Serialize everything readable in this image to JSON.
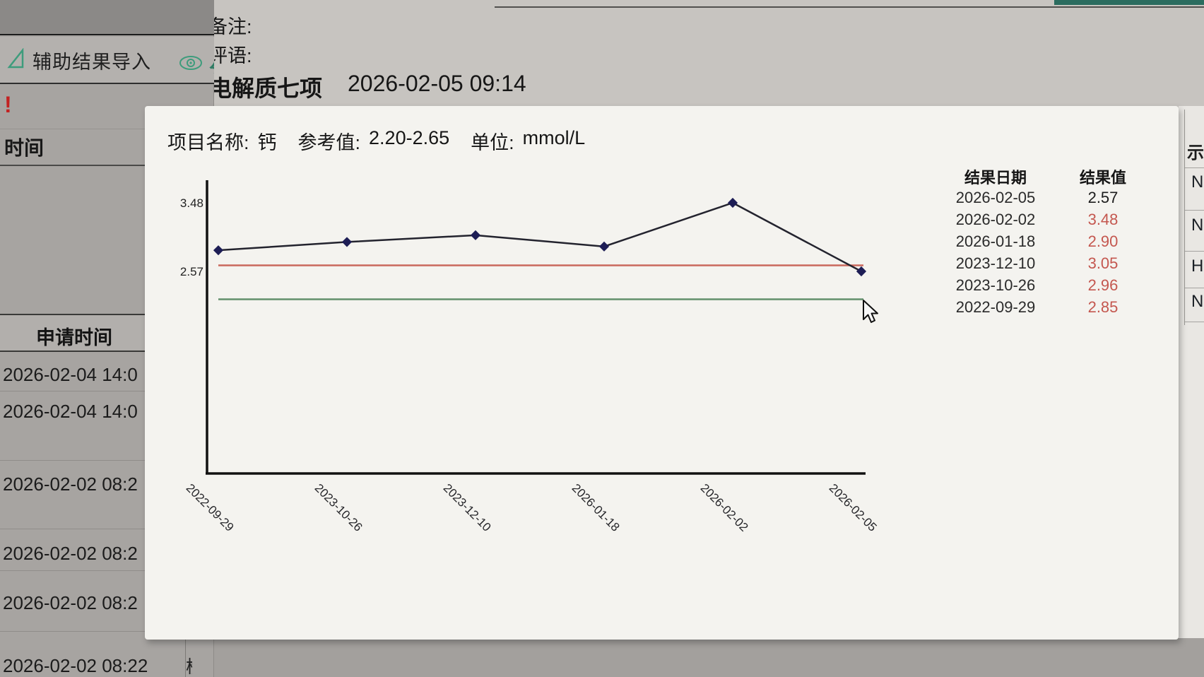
{
  "app": {
    "toolbar": {
      "import_button_label": "辅助结果导入"
    },
    "alert_mark": "!",
    "time_label": "时间",
    "remark_label": "备注:",
    "comment_label": "评语:",
    "panel_title": "电解质七项",
    "panel_datetime": "2026-02-05 09:14",
    "left_table": {
      "header": "申请时间",
      "rows": [
        "2026-02-04 14:0",
        "2026-02-04 14:0",
        "2026-02-02 08:2",
        "2026-02-02 08:2",
        "2026-02-02 08:2",
        "2026-02-02 08:22"
      ],
      "clipped_next_cell_fragment": "检"
    },
    "flag_column": {
      "header_fragment": "示",
      "flags": [
        "N",
        "N",
        "H",
        "N"
      ]
    }
  },
  "dialog": {
    "item_label": "项目名称:",
    "item_name": "钙",
    "ref_label": "参考值:",
    "ref_value": "2.20-2.65",
    "unit_label": "单位:",
    "unit_value": "mmol/L",
    "result_table": {
      "date_header": "结果日期",
      "value_header": "结果值",
      "rows": [
        {
          "date": "2026-02-05",
          "value": "2.57",
          "abnormal": false
        },
        {
          "date": "2026-02-02",
          "value": "3.48",
          "abnormal": true
        },
        {
          "date": "2026-01-18",
          "value": "2.90",
          "abnormal": true
        },
        {
          "date": "2023-12-10",
          "value": "3.05",
          "abnormal": true
        },
        {
          "date": "2023-10-26",
          "value": "2.96",
          "abnormal": true
        },
        {
          "date": "2022-09-29",
          "value": "2.85",
          "abnormal": true
        }
      ]
    }
  },
  "chart_data": {
    "type": "line",
    "title": "",
    "x": [
      "2022-09-29",
      "2023-10-26",
      "2023-12-10",
      "2026-01-18",
      "2026-02-02",
      "2026-02-05"
    ],
    "values": [
      2.85,
      2.96,
      3.05,
      2.9,
      3.48,
      2.57
    ],
    "y_ticks": [
      3.48,
      2.57
    ],
    "ref_upper": 2.65,
    "ref_lower": 2.2,
    "unit": "mmol/L",
    "grid": false,
    "legend": false
  },
  "colors": {
    "accent_green": "#3e9c7c",
    "abnormal_red": "#c4574f",
    "alert_red": "#c32222",
    "series_line": "#23232e",
    "series_point": "#1d1d55",
    "ref_upper_line": "#c9685c",
    "ref_lower_line": "#62906c"
  }
}
